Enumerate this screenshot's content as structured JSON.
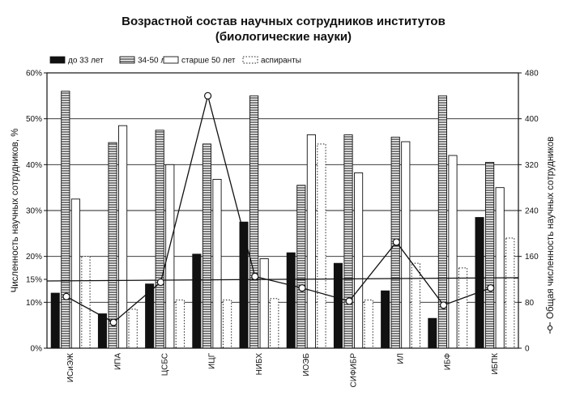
{
  "chart_data": {
    "type": "bar",
    "title": [
      "Возрастной состав научных сотрудников институтов",
      "(биологические науки)"
    ],
    "ylabel": "Численность научных сотрудников, %",
    "y2label": "Общая численность научных сотрудников",
    "ylim": [
      0,
      60
    ],
    "yticks": [
      "0%",
      "10%",
      "15%",
      "20%",
      "30%",
      "40%",
      "50%",
      "60%"
    ],
    "ytick_values": [
      0,
      10,
      15,
      20,
      30,
      40,
      50,
      60
    ],
    "y2lim": [
      0,
      480
    ],
    "y2ticks": [
      "0",
      "80",
      "160",
      "240",
      "320",
      "400",
      "480"
    ],
    "y2tick_values": [
      0,
      80,
      160,
      240,
      320,
      400,
      480
    ],
    "categories": [
      "ИСиЭЖ",
      "ИПА",
      "ЦСБС",
      "ИЦГ",
      "НИБХ",
      "ИОЭБ",
      "СИФИБР",
      "ИЛ",
      "ИБФ",
      "ИБПК"
    ],
    "series": [
      {
        "name": "до 33 лет",
        "pattern": "solid-black",
        "values": [
          12,
          7.5,
          14,
          20.5,
          27.5,
          20.8,
          18.5,
          12.5,
          6.5,
          28.5
        ]
      },
      {
        "name": "34-50 лет",
        "pattern": "horizontal-lines",
        "values": [
          56,
          44.8,
          47.5,
          44.5,
          55,
          35.5,
          46.5,
          46,
          55,
          40.5
        ]
      },
      {
        "name": "старше 50 лет",
        "pattern": "white",
        "values": [
          32.5,
          48.5,
          40,
          36.8,
          19.5,
          46.5,
          38.2,
          45,
          42,
          35
        ]
      },
      {
        "name": "аспиранты",
        "pattern": "dotted",
        "values": [
          20,
          8.5,
          10.5,
          10.5,
          10.8,
          44.5,
          10.5,
          18.5,
          17.5,
          24
        ]
      }
    ],
    "line": {
      "name": "Общая численность научных сотрудников",
      "axis": "right",
      "values": [
        90,
        45,
        115,
        440,
        125,
        105,
        82,
        185,
        75,
        105
      ]
    },
    "reference_line": {
      "axis": "left",
      "value": 15
    },
    "legend_placement": "top-left",
    "grid": true
  }
}
